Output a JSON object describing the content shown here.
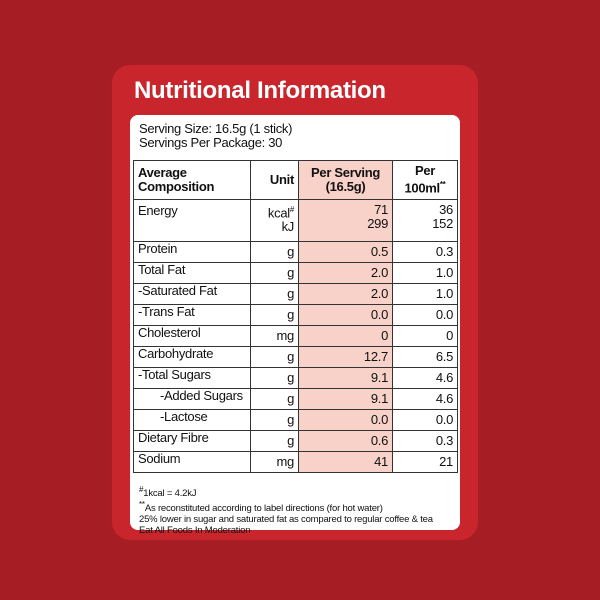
{
  "title": "Nutritional Information",
  "serving_size": "Serving Size: 16.5g (1 stick)",
  "servings_per_package": "Servings Per Package: 30",
  "table": {
    "headers": {
      "composition": "Average Composition",
      "unit": "Unit",
      "per_serving": "Per Serving (16.5g)",
      "per_100ml": "Per 100ml",
      "per_100ml_mark": "**"
    },
    "rows": [
      {
        "name": "Energy",
        "lines": [
          {
            "unit": "kcal",
            "unit_mark": "#",
            "per_serving": "71",
            "per_100ml": "36"
          },
          {
            "unit": "kJ",
            "per_serving": "299",
            "per_100ml": "152"
          }
        ]
      },
      {
        "name": "Protein",
        "lines": [
          {
            "unit": "g",
            "per_serving": "0.5",
            "per_100ml": "0.3"
          }
        ]
      },
      {
        "name": "Total Fat",
        "lines": [
          {
            "unit": "g",
            "per_serving": "2.0",
            "per_100ml": "1.0"
          }
        ]
      },
      {
        "name": "-Saturated Fat",
        "lines": [
          {
            "unit": "g",
            "per_serving": "2.0",
            "per_100ml": "1.0"
          }
        ]
      },
      {
        "name": "-Trans Fat",
        "lines": [
          {
            "unit": "g",
            "per_serving": "0.0",
            "per_100ml": "0.0"
          }
        ]
      },
      {
        "name": "Cholesterol",
        "lines": [
          {
            "unit": "mg",
            "per_serving": "0",
            "per_100ml": "0"
          }
        ]
      },
      {
        "name": "Carbohydrate",
        "lines": [
          {
            "unit": "g",
            "per_serving": "12.7",
            "per_100ml": "6.5"
          }
        ]
      },
      {
        "name": "-Total Sugars",
        "lines": [
          {
            "unit": "g",
            "per_serving": "9.1",
            "per_100ml": "4.6"
          }
        ]
      },
      {
        "name": "-Added Sugars",
        "lines": [
          {
            "unit": "g",
            "per_serving": "9.1",
            "per_100ml": "4.6"
          }
        ]
      },
      {
        "name": "-Lactose",
        "lines": [
          {
            "unit": "g",
            "per_serving": "0.0",
            "per_100ml": "0.0"
          }
        ]
      },
      {
        "name": "Dietary Fibre",
        "lines": [
          {
            "unit": "g",
            "per_serving": "0.6",
            "per_100ml": "0.3"
          }
        ]
      },
      {
        "name": "Sodium",
        "lines": [
          {
            "unit": "mg",
            "per_serving": "41",
            "per_100ml": "21"
          }
        ]
      }
    ]
  },
  "footnotes": [
    {
      "mark": "#",
      "text": "1kcal = 4.2kJ"
    },
    {
      "mark": "**",
      "text": "As reconstituted according to label directions (for hot water)"
    },
    {
      "text": "25% lower in sugar and saturated fat as compared to regular coffee & tea"
    },
    {
      "text": "Eat All Foods In Moderation"
    }
  ]
}
